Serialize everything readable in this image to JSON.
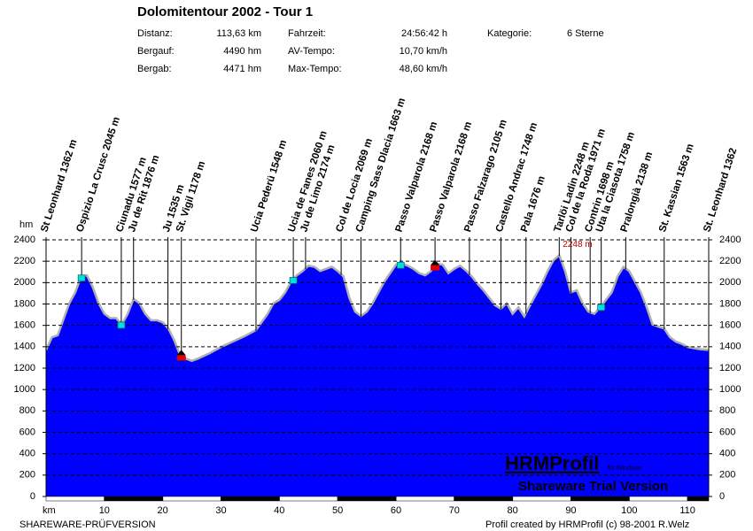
{
  "chart_data": {
    "type": "area",
    "title": "Dolomitentour 2002 - Tour 1",
    "stats": [
      [
        "Distanz:",
        "113,63 km",
        "Fahrzeit:",
        "24:56:42 h",
        "Kategorie:",
        "6 Sterne"
      ],
      [
        "Bergauf:",
        "4490 hm",
        "AV-Tempo:",
        "10,70 km/h"
      ],
      [
        "Bergab:",
        "4471 hm",
        "Max-Tempo:",
        "48,60 km/h"
      ]
    ],
    "y_label": "hm",
    "x_label": "km",
    "color": "#0000ff",
    "x": [
      0,
      1,
      2,
      3,
      4,
      5,
      6,
      7,
      8,
      9,
      10,
      11,
      12,
      13,
      14,
      15,
      16,
      17,
      18,
      19,
      20,
      21,
      22,
      23,
      24,
      25,
      26,
      28,
      30,
      32,
      34,
      36,
      38,
      39,
      40,
      41,
      42,
      43,
      44,
      45,
      46,
      47,
      48,
      49,
      50,
      51,
      52,
      53,
      54,
      55,
      56,
      57,
      58,
      59,
      60,
      61,
      62,
      63,
      64,
      65,
      66,
      67,
      68,
      69,
      70,
      71,
      72,
      73,
      74,
      75,
      76,
      77,
      78,
      79,
      80,
      81,
      82,
      83,
      84,
      85,
      86,
      87,
      88,
      89,
      90,
      91,
      92,
      93,
      94,
      95,
      96,
      97,
      98,
      99,
      100,
      101,
      102,
      103,
      104,
      105,
      106,
      107,
      108,
      109,
      110,
      112,
      113.63
    ],
    "values": [
      1362,
      1480,
      1500,
      1650,
      1800,
      1900,
      2045,
      2060,
      1950,
      1800,
      1700,
      1660,
      1660,
      1600,
      1700,
      1840,
      1800,
      1700,
      1640,
      1640,
      1620,
      1560,
      1450,
      1310,
      1280,
      1260,
      1280,
      1330,
      1390,
      1440,
      1490,
      1548,
      1700,
      1800,
      1830,
      1900,
      2000,
      2060,
      2100,
      2150,
      2140,
      2100,
      2120,
      2140,
      2100,
      2050,
      1850,
      1720,
      1680,
      1720,
      1800,
      1900,
      2000,
      2080,
      2160,
      2168,
      2150,
      2120,
      2080,
      2060,
      2100,
      2168,
      2160,
      2080,
      2120,
      2150,
      2105,
      2050,
      1980,
      1920,
      1850,
      1780,
      1748,
      1800,
      1700,
      1760,
      1676,
      1780,
      1880,
      1980,
      2100,
      2200,
      2248,
      2100,
      1900,
      1920,
      1800,
      1720,
      1700,
      1758,
      1830,
      1900,
      2050,
      2138,
      2100,
      2000,
      1900,
      1760,
      1600,
      1580,
      1563,
      1480,
      1440,
      1420,
      1390,
      1370,
      1362
    ],
    "xlim": [
      0,
      113.63
    ],
    "ylim": [
      0,
      2400
    ],
    "xticks": [
      10,
      20,
      30,
      40,
      50,
      60,
      70,
      80,
      90,
      100,
      110
    ],
    "yticks": [
      0,
      200,
      400,
      600,
      800,
      1000,
      1200,
      1400,
      1600,
      1800,
      2000,
      2200,
      2400
    ],
    "grid": true,
    "peak_label": "2248 m",
    "waypoints": [
      {
        "label": "St Leonhard 1362 m",
        "km": 0
      },
      {
        "label": "Ospizio La Crusc 2045 m",
        "km": 6.1,
        "icon": "cyan"
      },
      {
        "label": "Ciunadu 1577 m",
        "km": 12.9,
        "icon": "cyan"
      },
      {
        "label": "Ju de Rit 1876 m",
        "km": 15
      },
      {
        "label": "Ju 1535 m",
        "km": 20.9
      },
      {
        "label": "St. Vigil 1178 m",
        "km": 23.2,
        "icon": "min"
      },
      {
        "label": "Ucia Pederü 1548 m",
        "km": 36
      },
      {
        "label": "Ucia de Fanes 2060 m",
        "km": 42.4,
        "icon": "cyan"
      },
      {
        "label": "Ju de Limo 2174 m",
        "km": 44.5
      },
      {
        "label": "Col de Locia 2069 m",
        "km": 50.6
      },
      {
        "label": "Camping Sass Dlacia 1663 m",
        "km": 54
      },
      {
        "label": "Passo Valparola 2168 m",
        "km": 60.8,
        "icon": "cyan"
      },
      {
        "label": "Passo Valparola 2168 m",
        "km": 66.7,
        "icon": "max"
      },
      {
        "label": "Passo Falzarago 2105 m",
        "km": 72.6
      },
      {
        "label": "Castello Andrac 1748 m",
        "km": 78
      },
      {
        "label": "Pala 1676 m",
        "km": 82.3
      },
      {
        "label": "Tarlöi Ladin 2248 m",
        "km": 88
      },
      {
        "label": "Col de la Roda 1971 m",
        "km": 90
      },
      {
        "label": "Contrin 1698 m",
        "km": 93.3
      },
      {
        "label": "Uta la Ciasota 1758 m",
        "km": 95.2,
        "icon": "cyan"
      },
      {
        "label": "Pralongià 2138 m",
        "km": 99.4
      },
      {
        "label": "St. Kassian 1563 m",
        "km": 106
      },
      {
        "label": "St. Leonhard 1362",
        "km": 113.63
      }
    ],
    "footer_left": "SHAREWARE-PRÜFVERSION",
    "footer_right": "Profil created by HRMProfil (c) 98-2001 R.Welz",
    "watermark": "HRMProfil",
    "watermark_sub": "für Windows",
    "watermark_trial": "Shareware Trial  Version"
  }
}
